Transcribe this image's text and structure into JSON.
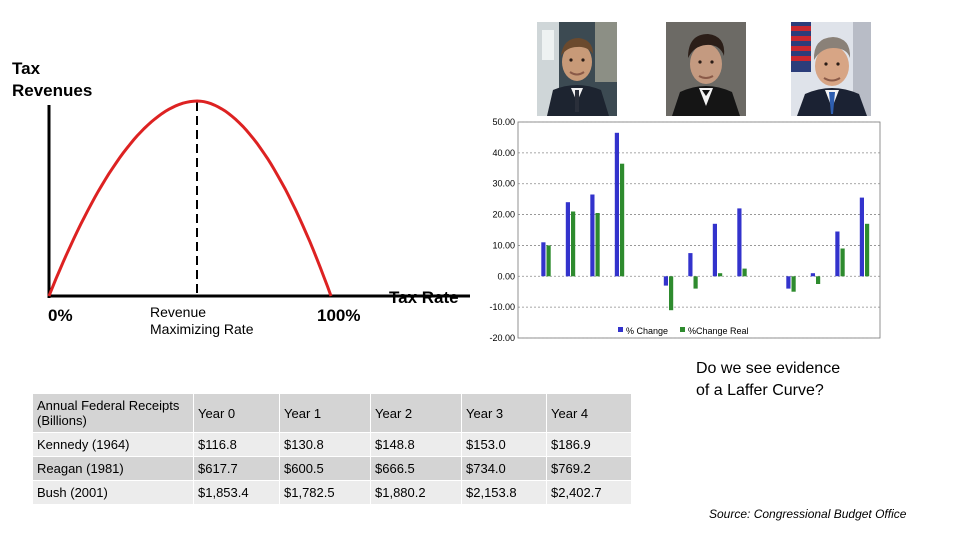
{
  "laffer": {
    "title_line1": "Tax",
    "title_line2": "Revenues",
    "x_start": "0%",
    "x_mid_line1": "Revenue",
    "x_mid_line2": "Maximizing Rate",
    "x_end": "100%",
    "x_axis_label": "Tax Rate"
  },
  "portraits": [
    {
      "name": "kennedy-portrait"
    },
    {
      "name": "reagan-portrait"
    },
    {
      "name": "bush-portrait"
    }
  ],
  "question": {
    "line1": "Do we see evidence",
    "line2": "of a Laffer Curve?"
  },
  "source": "Source: Congressional Budget Office",
  "table": {
    "header": [
      "Annual Federal Receipts (Billions)",
      "Year 0",
      "Year 1",
      "Year 2",
      "Year 3",
      "Year 4"
    ],
    "rows": [
      [
        "Kennedy (1964)",
        "$116.8",
        "$130.8",
        "$148.8",
        "$153.0",
        "$186.9"
      ],
      [
        "Reagan (1981)",
        "$617.7",
        "$600.5",
        "$666.5",
        "$734.0",
        "$769.2"
      ],
      [
        "Bush (2001)",
        "$1,853.4",
        "$1,782.5",
        "$1,880.2",
        "$2,153.8",
        "$2,402.7"
      ]
    ]
  },
  "colors": {
    "curve": "#dd2222",
    "pct_change": "#3333cc",
    "pct_change_real": "#2e8b2e"
  },
  "chart_data": [
    {
      "type": "line",
      "title": "",
      "xlabel": "Tax Rate",
      "ylabel": "Tax Revenues",
      "x_ticks": [
        "0%",
        "Revenue Maximizing Rate",
        "100%"
      ],
      "shape": "inverted parabola, zero at 0% and 100%, peak at revenue maximizing rate",
      "grid": false
    },
    {
      "type": "bar",
      "title": "",
      "ylim": [
        -20,
        50
      ],
      "y_ticks": [
        "50.00",
        "40.00",
        "30.00",
        "20.00",
        "10.00",
        "0.00",
        "-10.00",
        "-20.00"
      ],
      "grid": true,
      "legend_position": "bottom-right",
      "groups": 3,
      "series": [
        {
          "name": "% Change",
          "values": [
            11,
            24,
            26.5,
            46.5,
            -3,
            7.5,
            17,
            22,
            -4,
            1,
            14.5,
            25.5
          ]
        },
        {
          "name": "%Change Real",
          "values": [
            10,
            21,
            20.5,
            36.5,
            -11,
            -4,
            1,
            2.5,
            -5,
            -2.5,
            9,
            17
          ]
        }
      ]
    }
  ]
}
